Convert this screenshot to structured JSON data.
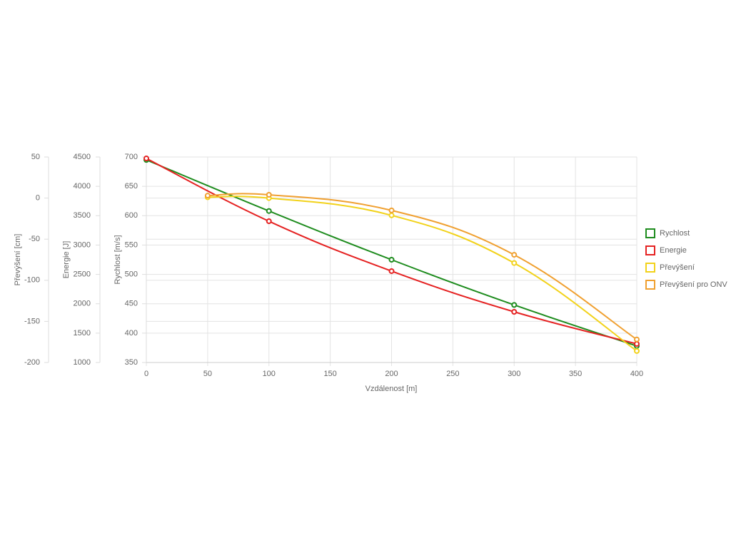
{
  "chart_data": {
    "type": "line",
    "xlabel": "Vzdálenost [m]",
    "xlim": [
      0,
      400
    ],
    "xticks": [
      0,
      50,
      100,
      150,
      200,
      250,
      300,
      350,
      400
    ],
    "ylabel": "Rychlost [m/s]",
    "ylim": [
      350,
      700
    ],
    "yticks": [
      350,
      400,
      450,
      500,
      550,
      600,
      650,
      700
    ],
    "y2label": "Energie [J]",
    "y2lim": [
      1000,
      4500
    ],
    "y2ticks": [
      1000,
      1500,
      2000,
      2500,
      3000,
      3500,
      4000,
      4500
    ],
    "y3label": "Převýšení [cm]",
    "y3lim": [
      -200,
      50
    ],
    "y3ticks": [
      -200,
      -150,
      -100,
      -50,
      0,
      50
    ],
    "grid": true,
    "legend": "right",
    "series": [
      {
        "name": "Rychlost",
        "color": "#1e8c1e",
        "axis": "y",
        "x": [
          0,
          100,
          200,
          300,
          400
        ],
        "values": [
          695,
          608,
          525,
          448,
          378
        ]
      },
      {
        "name": "Energie",
        "color": "#e52222",
        "axis": "y2",
        "x": [
          0,
          100,
          200,
          300,
          400
        ],
        "values": [
          4475,
          3406,
          2556,
          1863,
          1316
        ]
      },
      {
        "name": "Převýšení",
        "color": "#f2d21b",
        "axis": "y3",
        "x": [
          50,
          100,
          200,
          300,
          400
        ],
        "values": [
          1,
          0,
          -21,
          -79,
          -186
        ]
      },
      {
        "name": "Převýšení pro ONV",
        "color": "#f0a030",
        "axis": "y3",
        "x": [
          50,
          100,
          200,
          300,
          400
        ],
        "values": [
          3,
          4,
          -15,
          -69,
          -172
        ]
      }
    ]
  }
}
